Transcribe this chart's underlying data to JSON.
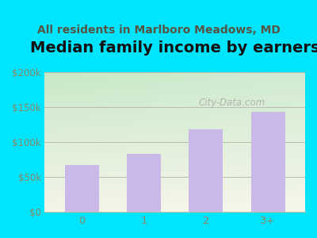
{
  "title": "Median family income by earners",
  "subtitle": "All residents in Marlboro Meadows, MD",
  "categories": [
    "0",
    "1",
    "2",
    "3+"
  ],
  "values": [
    67000,
    83000,
    118000,
    143000
  ],
  "bar_color": "#c9b8e8",
  "figure_bg": "#00e5ff",
  "plot_bg_topleft": "#c8e8c8",
  "plot_bg_bottomright": "#f5f5e8",
  "ylim": [
    0,
    200000
  ],
  "yticks": [
    0,
    50000,
    100000,
    150000,
    200000
  ],
  "ytick_labels": [
    "$0",
    "$50k",
    "$100k",
    "$150k",
    "$200k"
  ],
  "title_fontsize": 14,
  "subtitle_fontsize": 10,
  "tick_color": "#888866",
  "grid_color": "#bbbbaa",
  "watermark": "City-Data.com",
  "bar_width": 0.55
}
